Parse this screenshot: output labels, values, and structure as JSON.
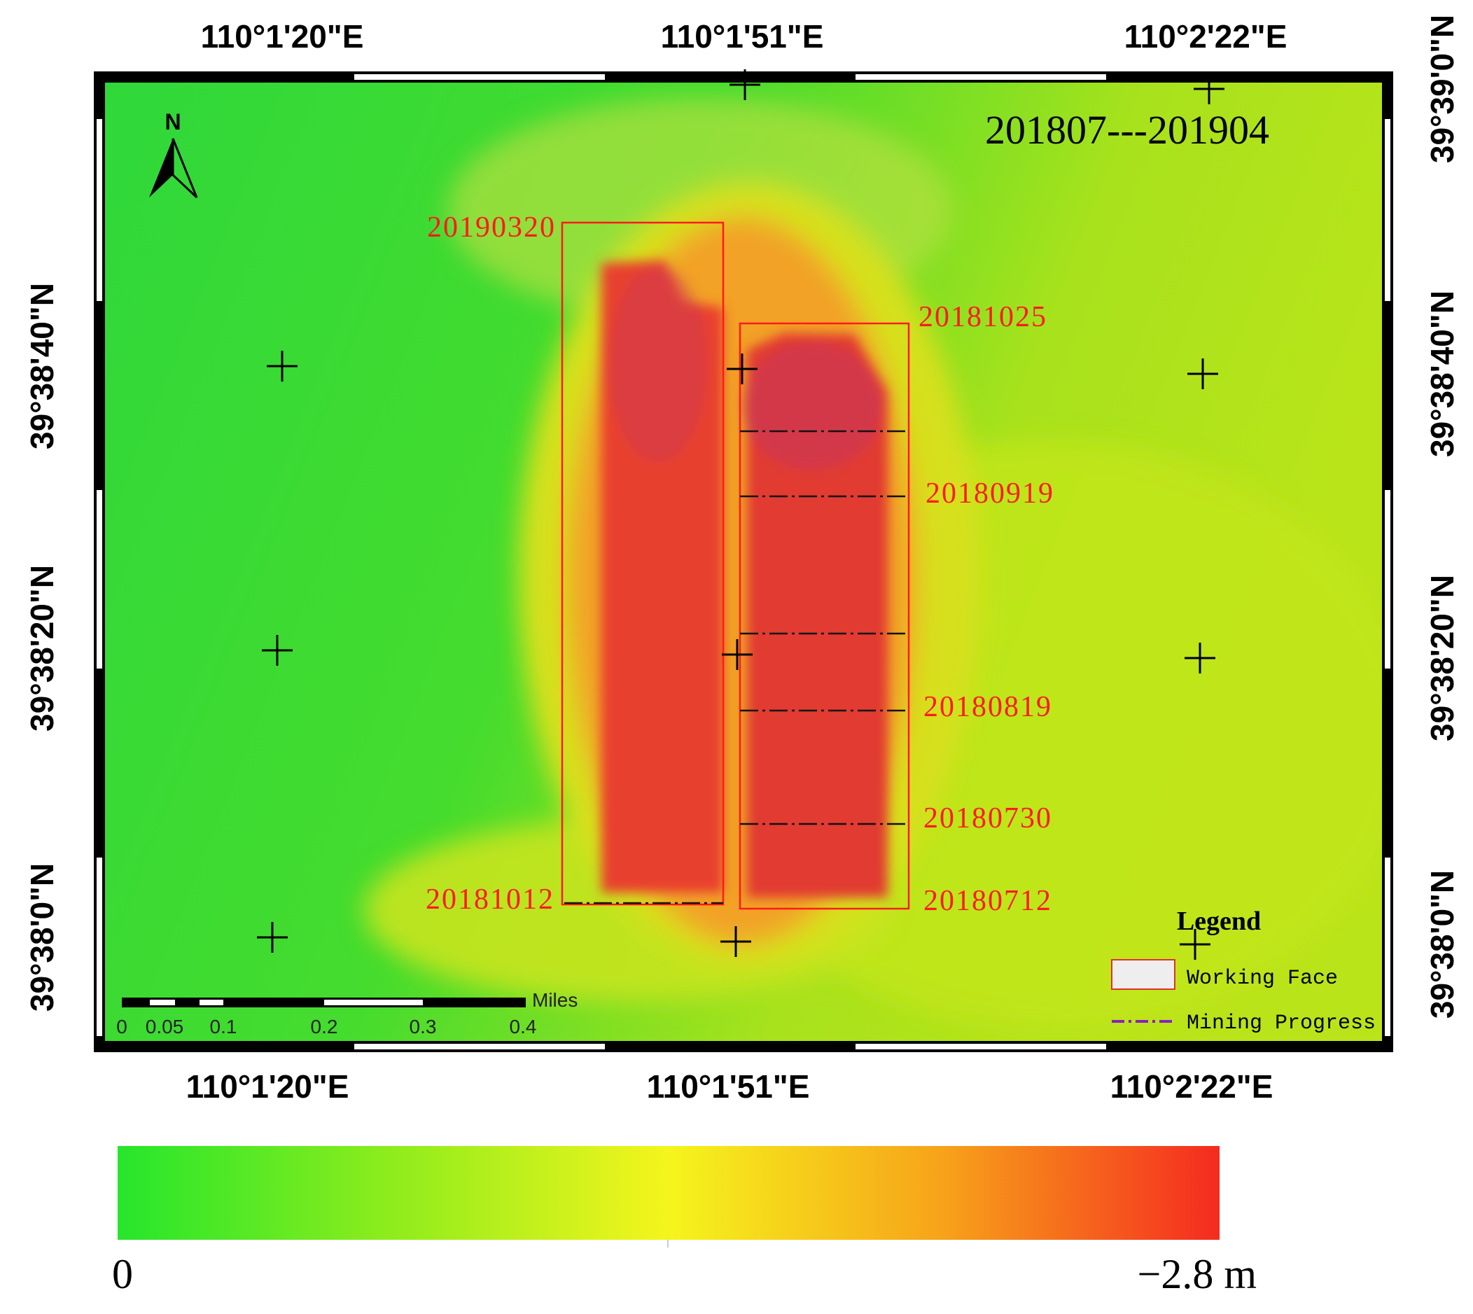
{
  "map": {
    "title": "201807---201904",
    "longitude_labels_top": [
      "110°1'20\"E",
      "110°1'51\"E",
      "110°2'22\"E"
    ],
    "longitude_labels_bottom": [
      "110°1'20\"E",
      "110°1'51\"E",
      "110°2'22\"E"
    ],
    "latitude_labels_left": [
      "39°38'40\"N",
      "39°38'20\"N",
      "39°38'0\"N"
    ],
    "latitude_labels_right": [
      "39°39'0\"N",
      "39°38'40\"N",
      "39°38'20\"N",
      "39°38'0\"N"
    ],
    "north_label": "N",
    "dates": [
      "20190320",
      "20181025",
      "20180919",
      "20180819",
      "20180730",
      "20181012",
      "20180712"
    ]
  },
  "scale_bar": {
    "unit": "Miles",
    "labels": [
      "0",
      "0.05",
      "0.1",
      "0.2",
      "0.3",
      "0.4"
    ]
  },
  "legend": {
    "title": "Legend",
    "items": [
      "Working Face",
      "Mining Progress"
    ]
  },
  "colorbar": {
    "min_label": "0",
    "max_label": "−2.8 m"
  }
}
